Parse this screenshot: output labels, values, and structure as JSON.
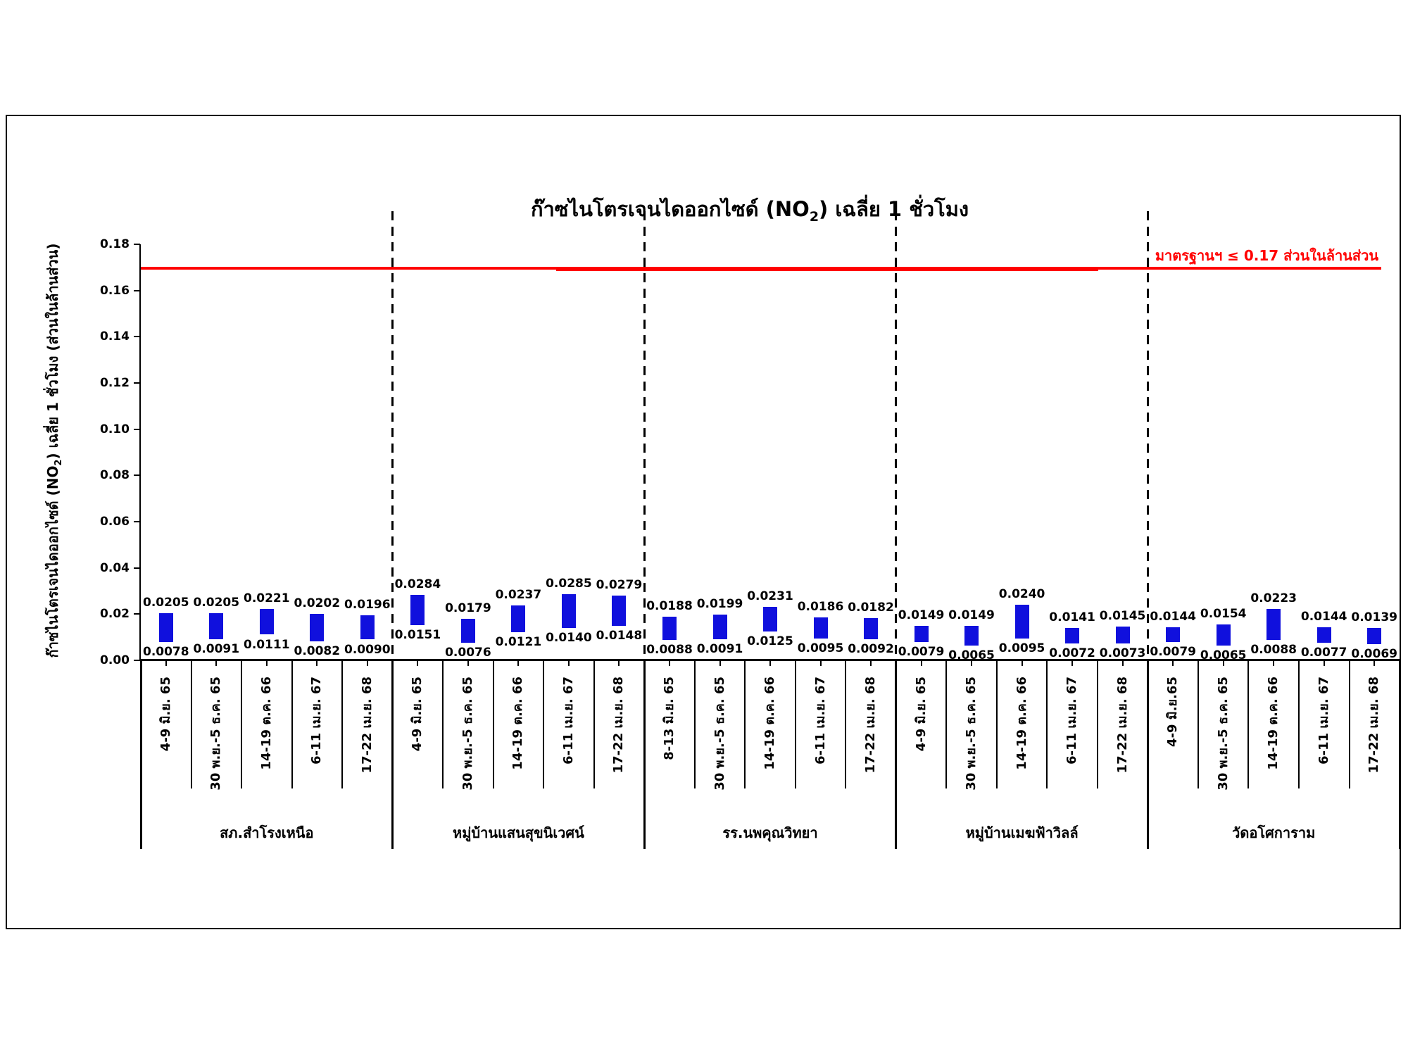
{
  "title_parts": {
    "pre": "ก๊าซไนโตรเจนไดออกไซด์ (NO",
    "sub": "2",
    "post": ") เฉลี่ย 1 ชั่วโมง"
  },
  "ylabel_parts": {
    "pre": "ก๊าซไนโตรเจนไดออกไซด์ (NO",
    "sub": "2",
    "post": ") เฉลี่ย 1 ชั่วโมง (ส่วนในล้านส่วน)"
  },
  "chart_data": {
    "type": "bar",
    "subtype": "floating-range-bars (min to max)",
    "title": "ก๊าซไนโตรเจนไดออกไซด์ (NO2) เฉลี่ย 1 ชั่วโมง",
    "ylabel": "ก๊าซไนโตรเจนไดออกไซด์ (NO2) เฉลี่ย 1 ชั่วโมง (ส่วนในล้านส่วน)",
    "xlabel": "",
    "ylim": [
      0,
      0.18
    ],
    "yticks": [
      "0.00",
      "0.02",
      "0.04",
      "0.06",
      "0.08",
      "0.10",
      "0.12",
      "0.14",
      "0.16",
      "0.18"
    ],
    "grid": false,
    "legend": "none",
    "bar_color": "#1010dd",
    "standard_line": {
      "value": 0.17,
      "label": "มาตรฐานฯ ≤ 0.17 ส่วนในล้านส่วน",
      "color": "#ff0000"
    },
    "groups": [
      {
        "station": "สภ.สำโรงเหนือ",
        "bars": [
          {
            "period": "4-9 มิ.ย. 65",
            "max": "0.0205",
            "min": "0.0078"
          },
          {
            "period": "30 พ.ย.-5 ธ.ค. 65",
            "max": "0.0205",
            "min": "0.0091"
          },
          {
            "period": "14-19 ต.ค. 66",
            "max": "0.0221",
            "min": "0.0111"
          },
          {
            "period": "6-11 เม.ย. 67",
            "max": "0.0202",
            "min": "0.0082"
          },
          {
            "period": "17-22 เม.ย. 68",
            "max": "0.0196",
            "min": "0.0090"
          }
        ]
      },
      {
        "station": "หมู่บ้านแสนสุขนิเวศน์",
        "bars": [
          {
            "period": "4-9 มิ.ย. 65",
            "max": "0.0284",
            "min": "0.0151"
          },
          {
            "period": "30 พ.ย.-5 ธ.ค. 65",
            "max": "0.0179",
            "min": "0.0076"
          },
          {
            "period": "14-19 ต.ค. 66",
            "max": "0.0237",
            "min": "0.0121"
          },
          {
            "period": "6-11 เม.ย. 67",
            "max": "0.0285",
            "min": "0.0140"
          },
          {
            "period": "17-22 เม.ย. 68",
            "max": "0.0279",
            "min": "0.0148"
          }
        ]
      },
      {
        "station": "รร.นพคุณวิทยา",
        "bars": [
          {
            "period": "8-13 มิ.ย. 65",
            "max": "0.0188",
            "min": "0.0088"
          },
          {
            "period": "30 พ.ย.-5 ธ.ค. 65",
            "max": "0.0199",
            "min": "0.0091"
          },
          {
            "period": "14-19 ต.ค. 66",
            "max": "0.0231",
            "min": "0.0125"
          },
          {
            "period": "6-11 เม.ย. 67",
            "max": "0.0186",
            "min": "0.0095"
          },
          {
            "period": "17-22 เม.ย. 68",
            "max": "0.0182",
            "min": "0.0092"
          }
        ]
      },
      {
        "station": "หมู่บ้านเมฆฟ้าวิลล์",
        "bars": [
          {
            "period": "4-9 มิ.ย. 65",
            "max": "0.0149",
            "min": "0.0079"
          },
          {
            "period": "30 พ.ย.-5 ธ.ค. 65",
            "max": "0.0149",
            "min": "0.0065"
          },
          {
            "period": "14-19 ต.ค. 66",
            "max": "0.0240",
            "min": "0.0095"
          },
          {
            "period": "6-11 เม.ย. 67",
            "max": "0.0141",
            "min": "0.0072"
          },
          {
            "period": "17-22 เม.ย. 68",
            "max": "0.0145",
            "min": "0.0073"
          }
        ]
      },
      {
        "station": "วัดอโศการาม",
        "bars": [
          {
            "period": "4-9 มิ.ย.65",
            "max": "0.0144",
            "min": "0.0079"
          },
          {
            "period": "30 พ.ย.-5 ธ.ค. 65",
            "max": "0.0154",
            "min": "0.0065"
          },
          {
            "period": "14-19 ต.ค. 66",
            "max": "0.0223",
            "min": "0.0088"
          },
          {
            "period": "6-11 เม.ย. 67",
            "max": "0.0144",
            "min": "0.0077"
          },
          {
            "period": "17-22 เม.ย. 68",
            "max": "0.0139",
            "min": "0.0069"
          }
        ]
      }
    ]
  }
}
